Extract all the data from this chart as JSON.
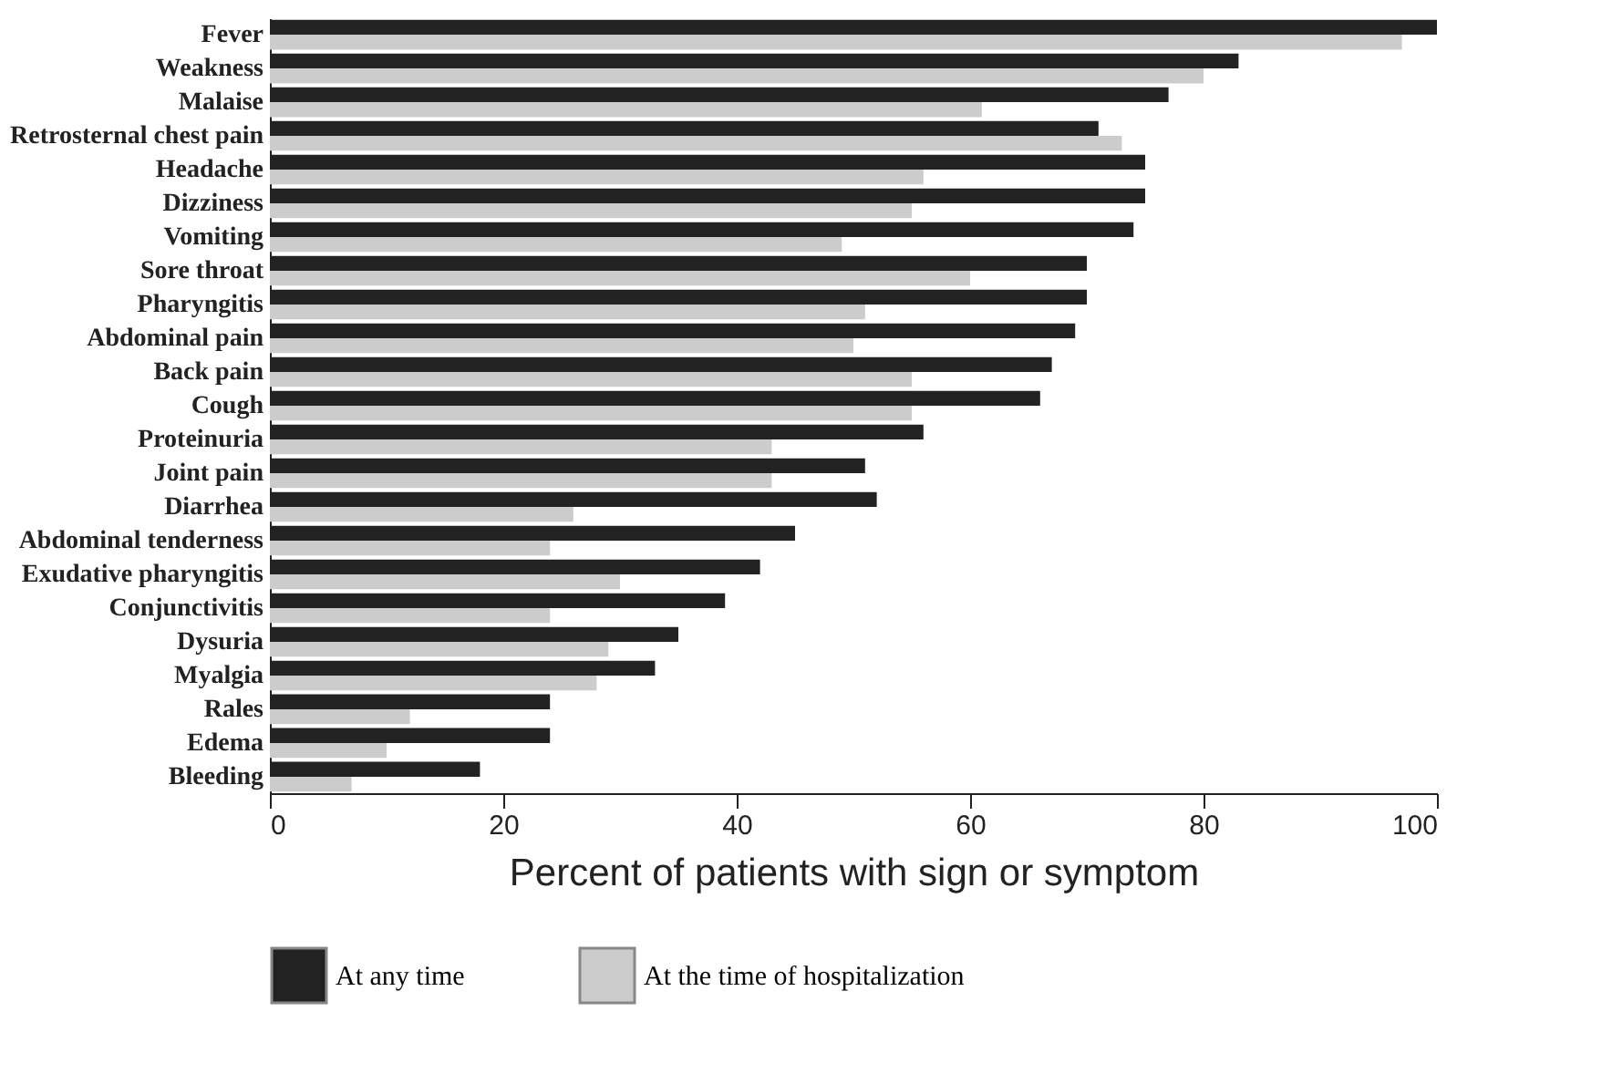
{
  "chart_data": {
    "type": "bar",
    "orientation": "horizontal",
    "xlabel": "Percent of patients with sign or symptom",
    "categories": [
      "Fever",
      "Weakness",
      "Malaise",
      "Retrosternal chest pain",
      "Headache",
      "Dizziness",
      "Vomiting",
      "Sore throat",
      "Pharyngitis",
      "Abdominal pain",
      "Back pain",
      "Cough",
      "Proteinuria",
      "Joint pain",
      "Diarrhea",
      "Abdominal tenderness",
      "Exudative pharyngitis",
      "Conjunctivitis",
      "Dysuria",
      "Myalgia",
      "Rales",
      "Edema",
      "Bleeding"
    ],
    "series": [
      {
        "name": "At any time",
        "color": "#222222",
        "values": [
          100,
          83,
          77,
          71,
          75,
          75,
          74,
          70,
          70,
          69,
          67,
          66,
          56,
          51,
          52,
          45,
          42,
          39,
          35,
          33,
          24,
          24,
          18
        ]
      },
      {
        "name": "At the time of hospitalization",
        "color": "#cccccc",
        "values": [
          97,
          80,
          61,
          73,
          56,
          55,
          49,
          60,
          51,
          50,
          55,
          55,
          43,
          43,
          26,
          24,
          30,
          24,
          29,
          28,
          12,
          10,
          7
        ]
      }
    ],
    "xlim": [
      0,
      100
    ],
    "xticks": [
      0,
      20,
      40,
      60,
      80,
      100
    ],
    "grid": false,
    "legend": "bottom"
  }
}
